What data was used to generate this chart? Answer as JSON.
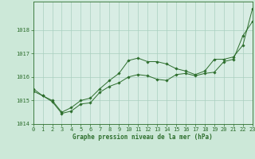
{
  "title": "Graphe pression niveau de la mer (hPa)",
  "background_color": "#cce8d8",
  "plot_bg_color": "#d8ede4",
  "grid_color": "#aacfbf",
  "line_color": "#2d6e2d",
  "xlim": [
    0,
    23
  ],
  "ylim": [
    1014,
    1019.2
  ],
  "x_ticks": [
    0,
    1,
    2,
    3,
    4,
    5,
    6,
    7,
    8,
    9,
    10,
    11,
    12,
    13,
    14,
    15,
    16,
    17,
    18,
    19,
    20,
    21,
    22,
    23
  ],
  "y_ticks": [
    1014,
    1015,
    1016,
    1017,
    1018
  ],
  "series1_x": [
    0,
    1,
    2,
    3,
    4,
    5,
    6,
    7,
    8,
    9,
    10,
    11,
    12,
    13,
    14,
    15,
    16,
    17,
    18,
    19,
    20,
    21,
    22,
    23
  ],
  "series1_y": [
    1015.4,
    1015.2,
    1014.95,
    1014.45,
    1014.55,
    1014.85,
    1014.9,
    1015.35,
    1015.6,
    1015.75,
    1016.0,
    1016.1,
    1016.05,
    1015.9,
    1015.85,
    1016.1,
    1016.15,
    1016.05,
    1016.15,
    1016.2,
    1016.65,
    1016.75,
    1017.75,
    1018.35
  ],
  "series2_x": [
    0,
    1,
    2,
    3,
    4,
    5,
    6,
    7,
    8,
    9,
    10,
    11,
    12,
    13,
    14,
    15,
    16,
    17,
    18,
    19,
    20,
    21,
    22,
    23
  ],
  "series2_y": [
    1015.5,
    1015.2,
    1015.0,
    1014.5,
    1014.7,
    1015.0,
    1015.1,
    1015.5,
    1015.85,
    1016.15,
    1016.7,
    1016.8,
    1016.65,
    1016.65,
    1016.55,
    1016.35,
    1016.25,
    1016.1,
    1016.25,
    1016.75,
    1016.75,
    1016.85,
    1017.35,
    1018.9
  ],
  "title_fontsize": 5.5,
  "tick_fontsize": 5,
  "xlabel_pad": 1
}
